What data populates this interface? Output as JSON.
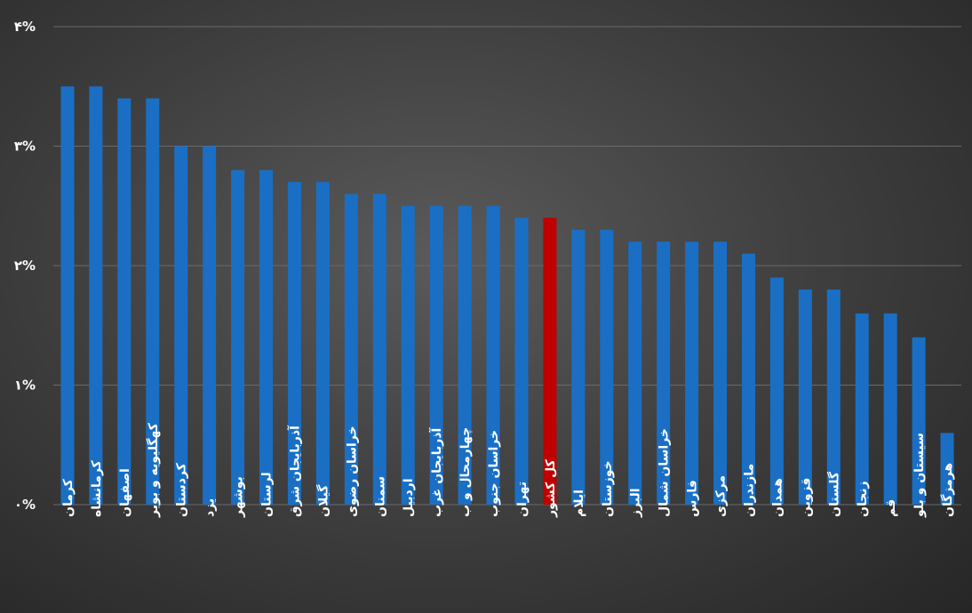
{
  "chart_data": {
    "type": "bar",
    "title": "",
    "xlabel": "",
    "ylabel": "",
    "ylim": [
      0,
      4
    ],
    "yticks": [
      "۰%",
      "۱%",
      "۲%",
      "۳%",
      "۴%"
    ],
    "grid": true,
    "legend": "none",
    "colors": {
      "default": "#1a6fc4",
      "highlight": "#c00000",
      "grid": "#6a6a6a",
      "text": "#ffffff"
    },
    "highlight_category": "کل کشور",
    "categories": [
      "کرمان",
      "کرمانشاه",
      "اصفهان",
      "کهگلیویه و بویر",
      "کردستان",
      "یزد",
      "بوشهر",
      "لرستان",
      "آذربایجان شرق",
      "گیلان",
      "خراسان رضوی",
      "سمنان",
      "اردبیل",
      "آذربایجان غرب",
      "چهارمحال و ب",
      "خراسان جنوب",
      "تهران",
      "کل کشور",
      "ایلام",
      "خوزستان",
      "البرز",
      "خراسان شمال",
      "فارس",
      "مرکزی",
      "مازندران",
      "همدان",
      "قزوین",
      "گلستان",
      "زنجان",
      "قم",
      "سیستان و بلو",
      "هرمزگان"
    ],
    "values": [
      3.5,
      3.5,
      3.4,
      3.4,
      3.0,
      3.0,
      2.8,
      2.8,
      2.7,
      2.7,
      2.6,
      2.6,
      2.5,
      2.5,
      2.5,
      2.5,
      2.4,
      2.4,
      2.3,
      2.3,
      2.2,
      2.2,
      2.2,
      2.2,
      2.1,
      1.9,
      1.8,
      1.8,
      1.6,
      1.6,
      1.4,
      0.6
    ]
  }
}
